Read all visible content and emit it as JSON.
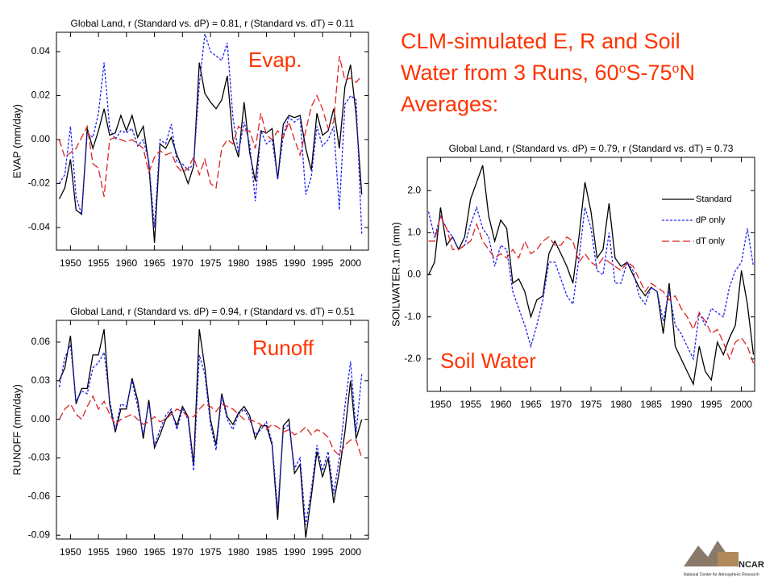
{
  "slide": {
    "heading": [
      "CLM-simulated E, R and Soil",
      "Water from 3 Runs, 60",
      "o",
      "S-75",
      "o",
      "N",
      "Averages:"
    ],
    "logo": {
      "name": "NCAR",
      "caption": "National Center for Atmospheric Research"
    }
  },
  "chart_data": [
    {
      "type": "line",
      "title": "Global Land,  r (Standard vs. dP) =  0.81,  r (Standard vs. dT) =  0.11",
      "y_label": "EVAP (mm/day)",
      "annotation": "Evap.",
      "legend": false,
      "xlim": [
        1947.5,
        2003.2
      ],
      "xticks": [
        1950,
        1955,
        1960,
        1965,
        1970,
        1975,
        1980,
        1985,
        1990,
        1995,
        2000
      ],
      "ylim": [
        -0.0503,
        0.0488
      ],
      "yticks": [
        0.04,
        0.02,
        {
          "value": 0,
          "label": "0.00"
        },
        -0.02,
        -0.04
      ],
      "x": [
        1948,
        1949,
        1950,
        1951,
        1952,
        1953,
        1954,
        1955,
        1956,
        1957,
        1958,
        1959,
        1960,
        1961,
        1962,
        1963,
        1964,
        1965,
        1966,
        1967,
        1968,
        1969,
        1970,
        1971,
        1972,
        1973,
        1974,
        1975,
        1976,
        1977,
        1978,
        1979,
        1980,
        1981,
        1982,
        1983,
        1984,
        1985,
        1986,
        1987,
        1988,
        1989,
        1990,
        1991,
        1992,
        1993,
        1994,
        1995,
        1996,
        1997,
        1998,
        1999,
        2000,
        2001,
        2002
      ],
      "series": [
        {
          "color": "#000000",
          "style": "solid",
          "values": [
            -0.027,
            -0.022,
            -0.009,
            -0.032,
            -0.034,
            0.005,
            -0.004,
            0.004,
            0.014,
            0.002,
            0.003,
            0.011,
            0.004,
            0.011,
            0.001,
            0.006,
            -0.011,
            -0.047,
            -0.002,
            -0.004,
            0.001,
            -0.007,
            -0.013,
            -0.02,
            -0.012,
            0.035,
            0.021,
            0.017,
            0.014,
            0.018,
            0.029,
            0.0,
            -0.008,
            0.017,
            -0.006,
            -0.019,
            0.004,
            0.003,
            0.005,
            -0.018,
            0.007,
            0.011,
            0.01,
            0.011,
            -0.004,
            -0.014,
            0.012,
            0.002,
            0.004,
            0.014,
            -0.004,
            0.024,
            0.034,
            0.011,
            -0.025
          ]
        },
        {
          "color": "#2222ee",
          "style": "dotted",
          "values": [
            -0.02,
            -0.016,
            0.006,
            -0.026,
            -0.034,
            0.003,
            0.001,
            0.012,
            0.035,
            0.005,
            0.0,
            0.004,
            0.003,
            0.005,
            -0.003,
            0.0,
            -0.01,
            -0.04,
            0.0,
            -0.002,
            0.007,
            -0.01,
            -0.011,
            -0.014,
            -0.011,
            0.025,
            0.048,
            0.04,
            0.038,
            0.036,
            0.044,
            0.01,
            -0.006,
            0.008,
            -0.002,
            -0.028,
            0.004,
            -0.002,
            0.0,
            -0.018,
            0.002,
            0.01,
            0.008,
            0.01,
            -0.025,
            -0.017,
            0.006,
            -0.003,
            0.0,
            0.006,
            -0.032,
            0.016,
            0.02,
            0.018,
            -0.043
          ]
        },
        {
          "color": "#dd2222",
          "style": "dashed",
          "values": [
            0.0,
            -0.008,
            -0.006,
            -0.004,
            0.001,
            0.006,
            -0.011,
            -0.013,
            -0.026,
            0.0,
            0.001,
            0.0,
            -0.001,
            0.0,
            -0.002,
            -0.004,
            -0.015,
            -0.008,
            -0.005,
            -0.007,
            -0.006,
            -0.012,
            -0.015,
            -0.013,
            -0.008,
            -0.016,
            -0.009,
            -0.02,
            -0.022,
            -0.004,
            0.0,
            -0.002,
            0.006,
            0.004,
            0.004,
            -0.004,
            0.012,
            0.002,
            0.0,
            0.004,
            0.001,
            0.008,
            0.0,
            -0.007,
            0.004,
            0.015,
            0.02,
            0.014,
            0.005,
            0.008,
            0.038,
            0.027,
            0.028,
            0.026,
            0.029
          ]
        }
      ]
    },
    {
      "type": "line",
      "title": "Global Land,  r (Standard vs. dP) =  0.94,  r (Standard vs. dT) =  0.51",
      "y_label": "RUNOFF (mm/day)",
      "annotation": "Runoff",
      "legend": false,
      "xlim": [
        1947.5,
        2003.2
      ],
      "xticks": [
        1950,
        1955,
        1960,
        1965,
        1970,
        1975,
        1980,
        1985,
        1990,
        1995,
        2000
      ],
      "ylim": [
        -0.093,
        0.0769
      ],
      "yticks": [
        0.06,
        0.03,
        {
          "value": 0,
          "label": "0.00"
        },
        -0.03,
        -0.06,
        -0.09
      ],
      "x": [
        1948,
        1949,
        1950,
        1951,
        1952,
        1953,
        1954,
        1955,
        1956,
        1957,
        1958,
        1959,
        1960,
        1961,
        1962,
        1963,
        1964,
        1965,
        1966,
        1967,
        1968,
        1969,
        1970,
        1971,
        1972,
        1973,
        1974,
        1975,
        1976,
        1977,
        1978,
        1979,
        1980,
        1981,
        1982,
        1983,
        1984,
        1985,
        1986,
        1987,
        1988,
        1989,
        1990,
        1991,
        1992,
        1993,
        1994,
        1995,
        1996,
        1997,
        1998,
        1999,
        2000,
        2001,
        2002
      ],
      "series": [
        {
          "color": "#000000",
          "style": "solid",
          "values": [
            0.03,
            0.04,
            0.065,
            0.012,
            0.024,
            0.024,
            0.05,
            0.05,
            0.07,
            0.012,
            -0.01,
            0.008,
            0.008,
            0.032,
            0.015,
            -0.015,
            0.015,
            -0.022,
            -0.012,
            0.0,
            0.006,
            -0.005,
            0.01,
            0.002,
            -0.035,
            0.07,
            0.04,
            0.0,
            -0.02,
            0.02,
            0.002,
            -0.004,
            0.005,
            0.01,
            0.003,
            -0.015,
            -0.005,
            -0.005,
            -0.02,
            -0.078,
            -0.005,
            0.0,
            -0.042,
            -0.035,
            -0.092,
            -0.06,
            -0.025,
            -0.045,
            -0.03,
            -0.065,
            -0.04,
            -0.01,
            0.03,
            -0.015,
            0.0
          ]
        },
        {
          "color": "#2222ee",
          "style": "dotted",
          "values": [
            0.025,
            0.048,
            0.058,
            0.014,
            0.022,
            0.02,
            0.04,
            0.044,
            0.052,
            0.015,
            -0.008,
            0.012,
            0.01,
            0.03,
            0.01,
            -0.012,
            0.012,
            -0.02,
            -0.008,
            0.003,
            0.008,
            -0.008,
            0.008,
            0.0,
            -0.04,
            0.05,
            0.035,
            -0.004,
            -0.024,
            0.018,
            0.0,
            -0.008,
            0.004,
            0.008,
            0.0,
            -0.012,
            -0.008,
            -0.002,
            -0.018,
            -0.07,
            -0.008,
            -0.004,
            -0.038,
            -0.03,
            -0.082,
            -0.055,
            -0.02,
            -0.04,
            -0.025,
            -0.058,
            -0.03,
            0.01,
            0.045,
            -0.01,
            0.035
          ]
        },
        {
          "color": "#dd2222",
          "style": "dashed",
          "values": [
            0.0,
            0.008,
            0.012,
            0.004,
            0.0,
            0.01,
            0.018,
            0.008,
            0.014,
            0.004,
            -0.004,
            0.0,
            0.002,
            0.004,
            0.0,
            -0.004,
            -0.002,
            0.002,
            -0.002,
            0.0,
            0.004,
            0.008,
            0.006,
            0.002,
            0.002,
            0.008,
            0.012,
            0.01,
            0.006,
            0.012,
            0.01,
            0.008,
            0.004,
            0.0,
            0.0,
            -0.002,
            -0.004,
            -0.008,
            -0.004,
            -0.006,
            -0.01,
            -0.008,
            -0.012,
            -0.01,
            -0.006,
            -0.012,
            -0.008,
            -0.01,
            -0.014,
            -0.024,
            -0.028,
            -0.02,
            -0.016,
            -0.016,
            -0.03
          ]
        }
      ]
    },
    {
      "type": "line",
      "title": "Global Land,  r (Standard vs. dP) = 0.79,  r (Standard vs. dT) =  0.73",
      "y_label": "SOILWATER.1m (mm)",
      "annotation": "Soil Water",
      "legend": "upper right",
      "xlim": [
        1947.8,
        2002.2
      ],
      "xticks": [
        1950,
        1955,
        1960,
        1965,
        1970,
        1975,
        1980,
        1985,
        1990,
        1995,
        2000
      ],
      "ylim": [
        -2.77,
        2.79
      ],
      "yticks": [
        {
          "value": 2,
          "label": "2.0"
        },
        {
          "value": 1,
          "label": "1.0"
        },
        {
          "value": 0,
          "label": "0.0"
        },
        {
          "value": -1,
          "label": "-1.0"
        },
        {
          "value": -2,
          "label": "-2.0"
        }
      ],
      "x": [
        1948,
        1949,
        1950,
        1951,
        1952,
        1953,
        1954,
        1955,
        1956,
        1957,
        1958,
        1959,
        1960,
        1961,
        1962,
        1963,
        1964,
        1965,
        1966,
        1967,
        1968,
        1969,
        1970,
        1971,
        1972,
        1973,
        1974,
        1975,
        1976,
        1977,
        1978,
        1979,
        1980,
        1981,
        1982,
        1983,
        1984,
        1985,
        1986,
        1987,
        1988,
        1989,
        1990,
        1991,
        1992,
        1993,
        1994,
        1995,
        1996,
        1997,
        1998,
        1999,
        2000,
        2001,
        2002
      ],
      "series": [
        {
          "name": "Standard",
          "color": "#000000",
          "style": "solid",
          "values": [
            0.0,
            0.3,
            1.6,
            0.7,
            0.9,
            0.6,
            0.9,
            1.8,
            2.2,
            2.6,
            1.4,
            0.8,
            1.3,
            1.1,
            -0.2,
            -0.1,
            -0.4,
            -1.0,
            -0.6,
            -0.5,
            0.5,
            0.8,
            0.5,
            0.2,
            -0.2,
            0.9,
            2.2,
            1.5,
            0.4,
            0.6,
            1.7,
            0.4,
            0.2,
            0.3,
            0.0,
            -0.3,
            -0.5,
            -0.3,
            -0.4,
            -1.4,
            -0.2,
            -1.7,
            -2.0,
            -2.3,
            -2.6,
            -1.7,
            -2.3,
            -2.5,
            -1.6,
            -1.9,
            -1.5,
            -1.2,
            0.1,
            -0.7,
            -1.9
          ]
        },
        {
          "name": "dP only",
          "color": "#2222ee",
          "style": "dotted",
          "values": [
            1.5,
            0.9,
            1.4,
            1.1,
            0.9,
            0.6,
            0.7,
            1.2,
            1.6,
            1.1,
            0.9,
            0.2,
            0.7,
            0.6,
            -0.4,
            -0.8,
            -1.2,
            -1.7,
            -1.2,
            -0.6,
            0.3,
            0.3,
            -0.1,
            -0.5,
            -0.7,
            0.4,
            1.6,
            1.1,
            0.1,
            0.0,
            1.0,
            -0.2,
            -0.2,
            0.3,
            0.1,
            -0.5,
            -0.7,
            -0.3,
            -0.4,
            -1.1,
            -0.4,
            -1.2,
            -1.4,
            -1.7,
            -2.0,
            -0.9,
            -1.2,
            -0.8,
            -0.9,
            -1.0,
            -0.3,
            0.1,
            0.3,
            1.1,
            0.2
          ]
        },
        {
          "name": "dT only",
          "color": "#dd2222",
          "style": "dashed",
          "values": [
            0.8,
            0.8,
            1.4,
            1.1,
            0.6,
            0.6,
            0.7,
            0.8,
            1.2,
            0.8,
            0.6,
            0.4,
            0.5,
            0.4,
            0.6,
            0.4,
            0.8,
            0.5,
            0.6,
            0.8,
            0.9,
            0.7,
            0.7,
            0.9,
            0.8,
            0.3,
            0.5,
            0.3,
            0.2,
            0.4,
            0.3,
            0.2,
            0.1,
            0.3,
            0.2,
            -0.1,
            -0.4,
            -0.2,
            -0.3,
            -0.4,
            -0.6,
            -0.5,
            -0.8,
            -1.0,
            -1.3,
            -0.9,
            -1.1,
            -1.4,
            -1.3,
            -1.6,
            -2.0,
            -1.6,
            -1.5,
            -1.7,
            -2.1
          ]
        }
      ]
    }
  ]
}
